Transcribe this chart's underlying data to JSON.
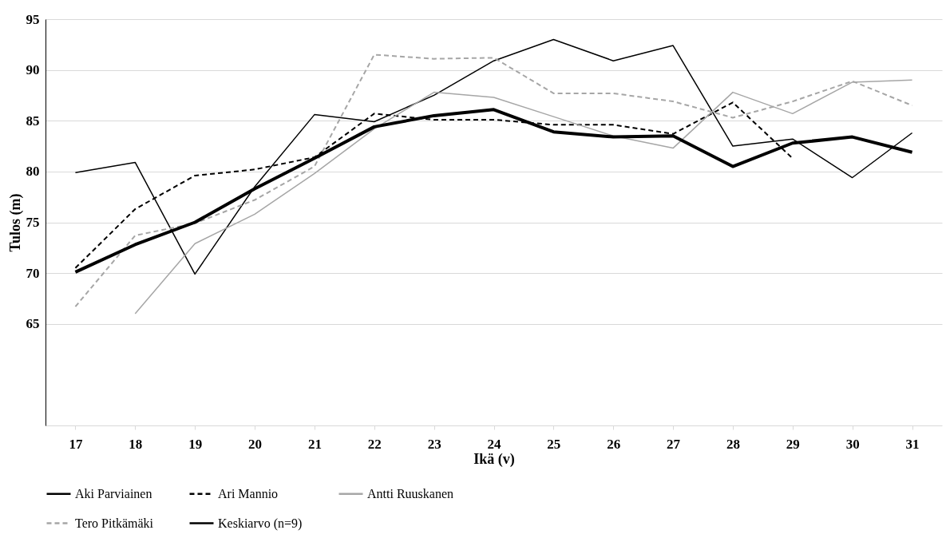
{
  "chart_data": {
    "type": "line",
    "xlabel": "Ikä (v)",
    "ylabel": "Tulos (m)",
    "categories": [
      "17",
      "18",
      "19",
      "20",
      "21",
      "22",
      "23",
      "24",
      "25",
      "26",
      "27",
      "28",
      "29",
      "30",
      "31"
    ],
    "ylim": [
      55,
      95
    ],
    "yticks": [
      65,
      70,
      75,
      80,
      85,
      90,
      95
    ],
    "grid": "y",
    "legend": "bottom",
    "series": [
      {
        "name": "Aki Parviainen",
        "color": "#000000",
        "line_style": "solid",
        "values": [
          79.9,
          80.9,
          69.9,
          78.5,
          85.6,
          84.9,
          87.5,
          90.9,
          93.0,
          90.9,
          92.4,
          82.5,
          83.2,
          79.4,
          83.8
        ]
      },
      {
        "name": "Ari Mannio",
        "color": "#000000",
        "line_style": "dashed",
        "values": [
          70.5,
          76.3,
          79.6,
          80.2,
          81.4,
          85.7,
          85.1,
          85.1,
          84.6,
          84.6,
          83.7,
          86.8,
          81.3,
          null,
          null
        ]
      },
      {
        "name": "Antti Ruuskanen",
        "color": "#a6a6a6",
        "line_style": "solid",
        "values": [
          null,
          66.0,
          72.9,
          75.8,
          79.8,
          84.2,
          87.8,
          87.3,
          85.4,
          83.5,
          82.3,
          87.8,
          85.7,
          88.8,
          89.0
        ]
      },
      {
        "name": "Tero Pitkämäki",
        "color": "#a6a6a6",
        "line_style": "dashed",
        "values": [
          66.7,
          73.7,
          74.9,
          77.2,
          80.5,
          91.5,
          91.1,
          91.2,
          87.7,
          87.7,
          86.9,
          85.3,
          86.9,
          88.9,
          86.5
        ]
      },
      {
        "name": "Keskiarvo (n=9)",
        "color": "#000000",
        "line_style": "solid",
        "values": [
          70.1,
          72.8,
          75.0,
          78.3,
          81.3,
          84.4,
          85.5,
          86.1,
          83.9,
          83.4,
          83.5,
          80.5,
          82.8,
          83.4,
          81.9
        ]
      }
    ]
  }
}
